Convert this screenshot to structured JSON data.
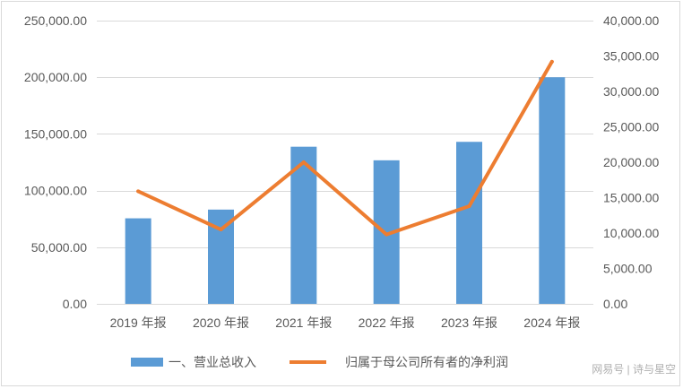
{
  "chart_data": {
    "type": "bar",
    "categories": [
      "2019 年报",
      "2020 年报",
      "2021 年报",
      "2022 年报",
      "2023 年报",
      "2024 年报"
    ],
    "series": [
      {
        "name": "一、营业总收入",
        "type": "bar",
        "axis": "left",
        "values": [
          75500,
          83200,
          138700,
          126700,
          143000,
          200000
        ]
      },
      {
        "name": "归属于母公司所有者的净利润",
        "type": "line",
        "axis": "right",
        "values": [
          15900,
          10500,
          20000,
          9800,
          13800,
          34200
        ]
      }
    ],
    "y_left": {
      "min": 0,
      "max": 250000,
      "step": 50000,
      "tick_labels": [
        "0.00",
        "50,000.00",
        "100,000.00",
        "150,000.00",
        "200,000.00",
        "250,000.00"
      ]
    },
    "y_right": {
      "min": 0,
      "max": 40000,
      "step": 5000,
      "tick_labels": [
        "0.00",
        "5,000.00",
        "10,000.00",
        "15,000.00",
        "20,000.00",
        "25,000.00",
        "30,000.00",
        "35,000.00",
        "40,000.00"
      ]
    },
    "grid": true,
    "legend": "bottom",
    "colors": {
      "bar": "#5b9bd5",
      "line": "#ed7d31",
      "grid": "#d9d9d9",
      "text": "#595959"
    }
  },
  "watermark": "网易号 | 诗与星空"
}
